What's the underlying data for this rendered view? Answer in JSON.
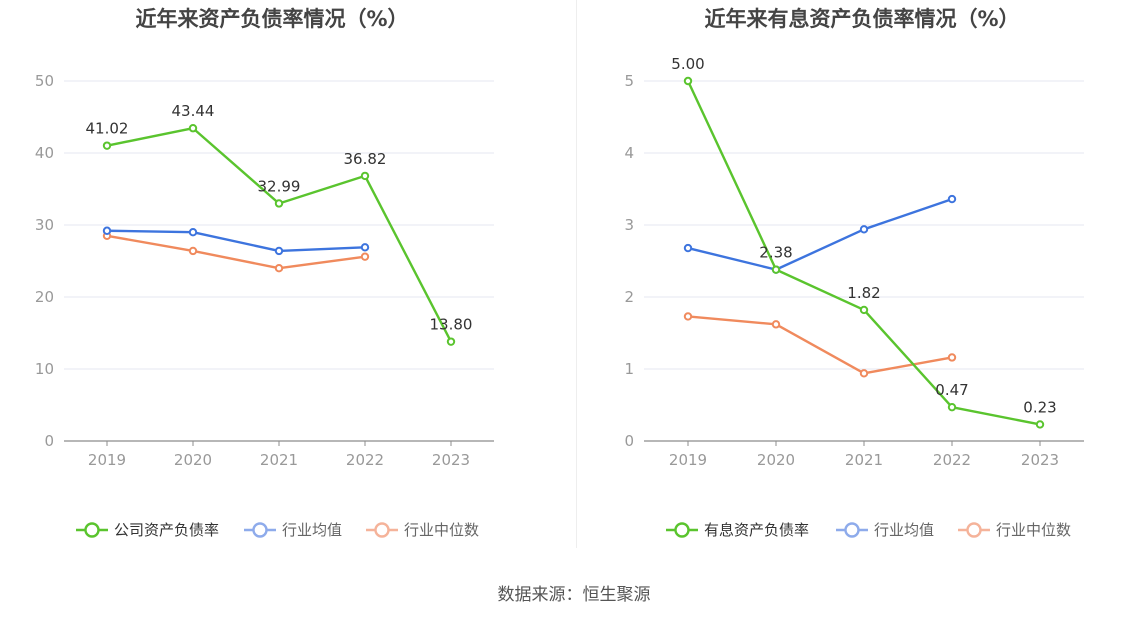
{
  "source": "数据来源：恒生聚源",
  "chart_data": [
    {
      "type": "line",
      "title": "近年来资产负债率情况（%）",
      "categories": [
        "2019",
        "2020",
        "2021",
        "2022",
        "2023"
      ],
      "ylim": [
        0,
        50
      ],
      "yticks": [
        0,
        10,
        20,
        30,
        40,
        50
      ],
      "grid": true,
      "legend_position": "bottom",
      "series": [
        {
          "name": "公司资产负债率",
          "color": "#5ac42e",
          "values": [
            41.02,
            43.44,
            32.99,
            36.82,
            13.8
          ],
          "labels": [
            "41.02",
            "43.44",
            "32.99",
            "36.82",
            "13.80"
          ]
        },
        {
          "name": "行业均值",
          "color": "#3d74de",
          "values": [
            29.2,
            29.0,
            26.4,
            26.9,
            null
          ]
        },
        {
          "name": "行业中位数",
          "color": "#f08a5d",
          "values": [
            28.5,
            26.4,
            24.0,
            25.6,
            null
          ]
        }
      ]
    },
    {
      "type": "line",
      "title": "近年来有息资产负债率情况（%）",
      "categories": [
        "2019",
        "2020",
        "2021",
        "2022",
        "2023"
      ],
      "ylim": [
        0,
        5
      ],
      "yticks": [
        0,
        1,
        2,
        3,
        4,
        5
      ],
      "grid": true,
      "legend_position": "bottom",
      "series": [
        {
          "name": "有息资产负债率",
          "color": "#5ac42e",
          "values": [
            5.0,
            2.38,
            1.82,
            0.47,
            0.23
          ],
          "labels": [
            "5.00",
            "2.38",
            "1.82",
            "0.47",
            "0.23"
          ]
        },
        {
          "name": "行业均值",
          "color": "#3d74de",
          "values": [
            2.68,
            2.38,
            2.94,
            3.36,
            null
          ]
        },
        {
          "name": "行业中位数",
          "color": "#f08a5d",
          "values": [
            1.73,
            1.62,
            0.94,
            1.16,
            null
          ]
        }
      ]
    }
  ]
}
